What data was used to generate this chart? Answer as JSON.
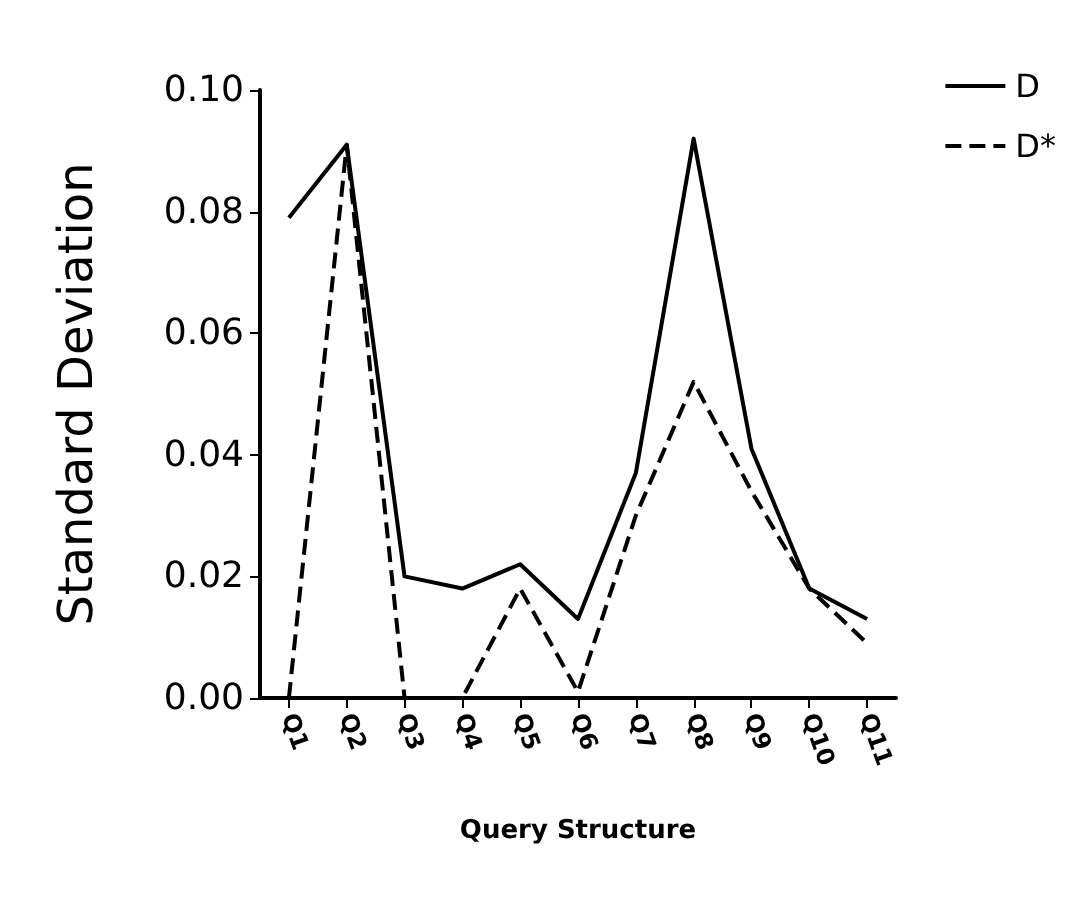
{
  "chart_data": {
    "type": "line",
    "xlabel": "Query Structure",
    "ylabel": "Standard Deviation",
    "categories": [
      "Q1",
      "Q2",
      "Q3",
      "Q4",
      "Q5",
      "Q6",
      "Q7",
      "Q8",
      "Q9",
      "Q10",
      "Q11"
    ],
    "series": [
      {
        "name": "D",
        "color": "#000000",
        "line_style": "solid",
        "values": [
          0.079,
          0.091,
          0.02,
          0.018,
          0.022,
          0.013,
          0.037,
          0.092,
          0.041,
          0.018,
          0.013
        ]
      },
      {
        "name": "D*",
        "color": "#000000",
        "line_style": "dashed",
        "values": [
          0,
          0.091,
          0,
          0,
          0.018,
          0.001,
          0.03,
          0.052,
          0.034,
          0.018,
          0.009
        ]
      }
    ],
    "ylim": [
      0,
      0.1
    ],
    "yticks": [
      {
        "value": 0,
        "label": "0.00"
      },
      {
        "value": 0.02,
        "label": "0.02"
      },
      {
        "value": 0.04,
        "label": "0.04"
      },
      {
        "value": 0.06,
        "label": "0.06"
      },
      {
        "value": 0.08,
        "label": "0.08"
      },
      {
        "value": 0.1,
        "label": "0.10"
      }
    ],
    "grid": false,
    "legend": "top right",
    "marker": "none"
  }
}
